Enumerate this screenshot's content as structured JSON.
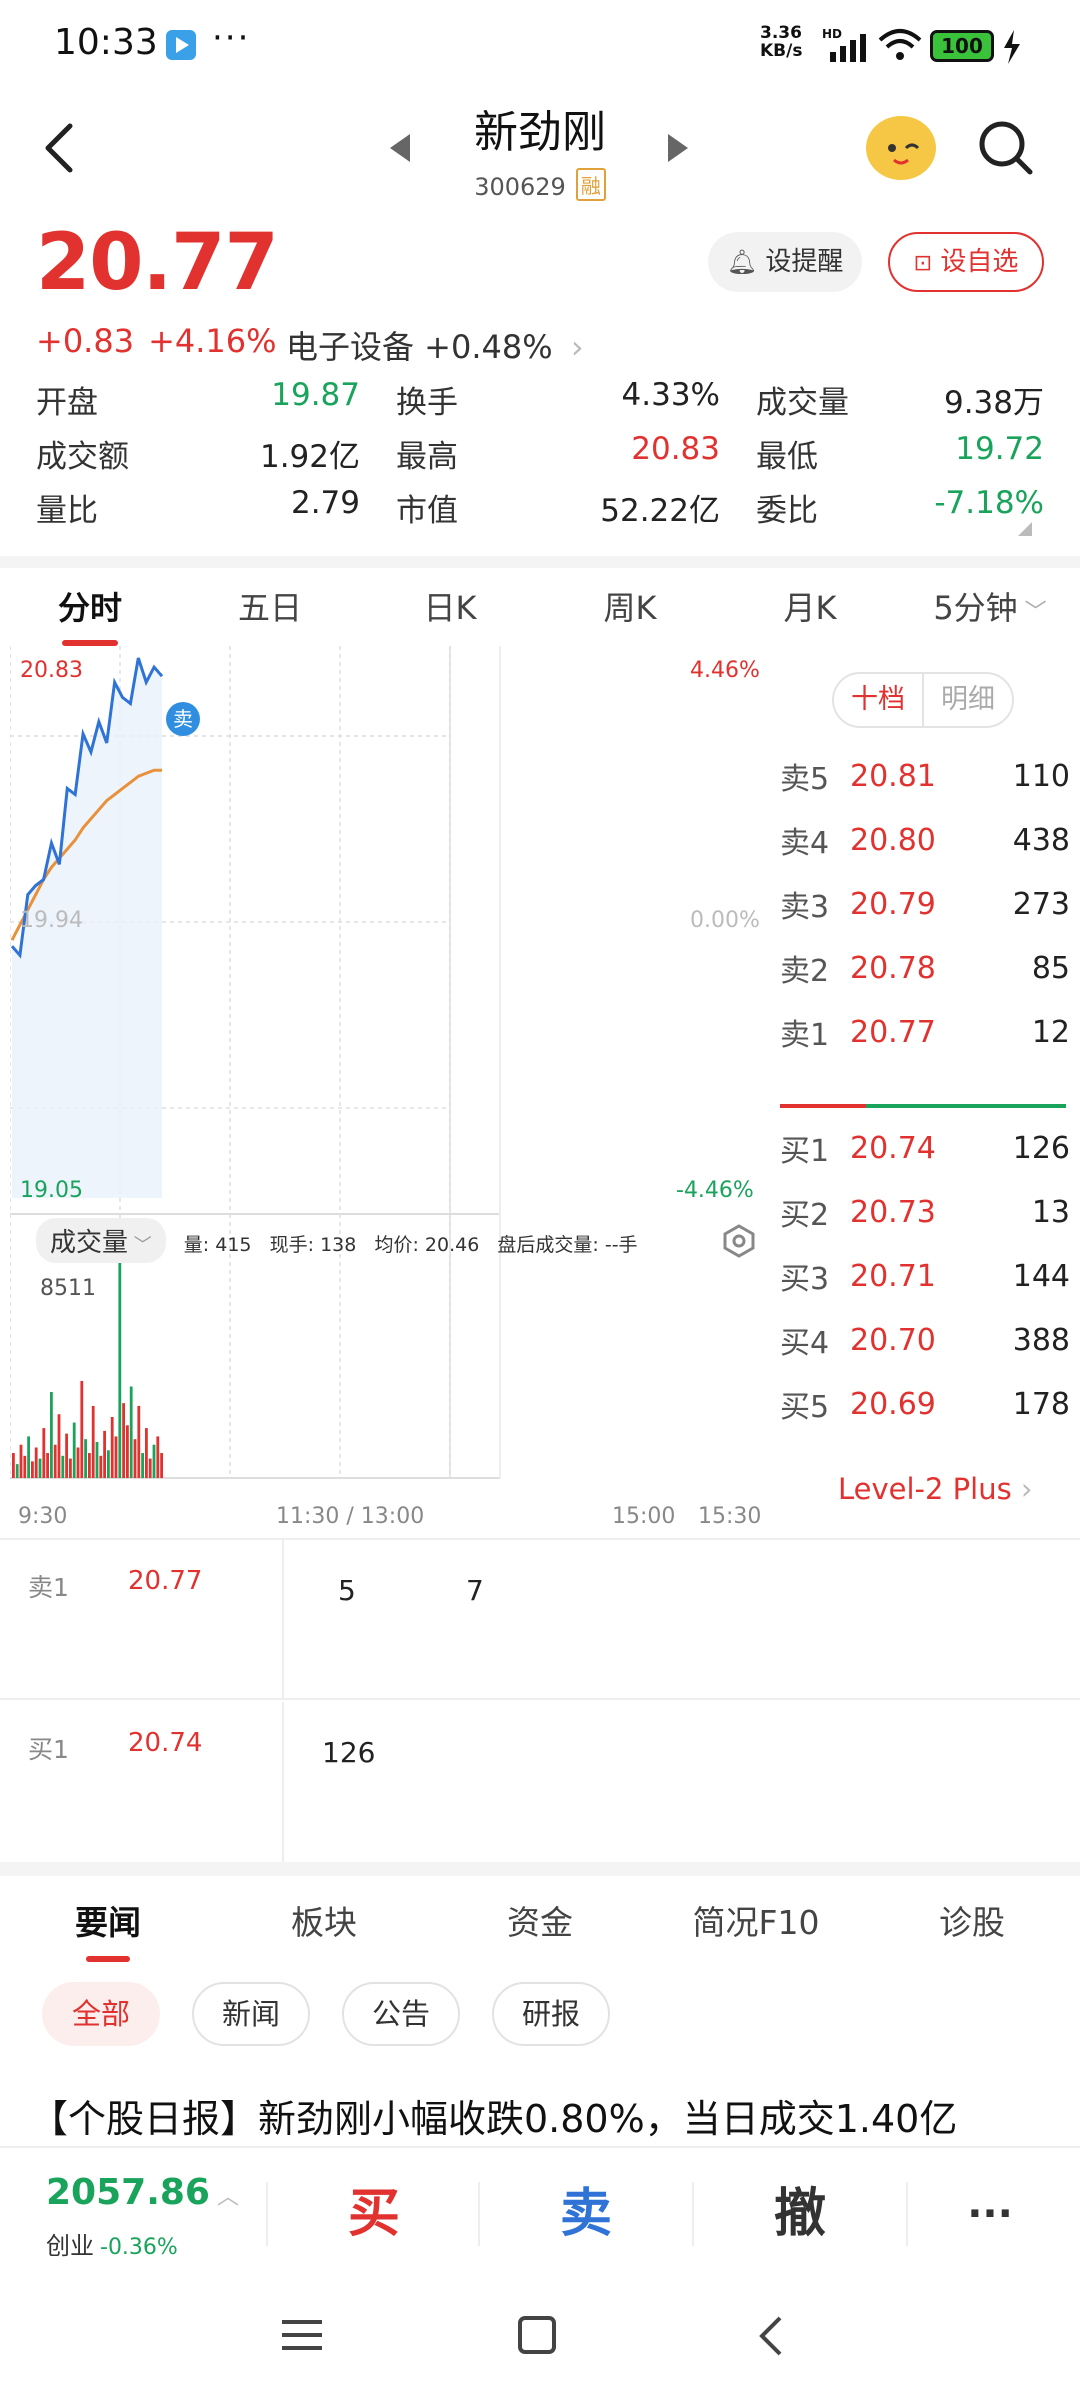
{
  "status_bar": {
    "time": "10:33",
    "dots": "···",
    "net_speed_value": "3.36",
    "net_speed_unit": "KB/s",
    "battery": "100"
  },
  "header": {
    "stock_name": "新劲刚",
    "stock_code": "300629",
    "margin_tag": "融"
  },
  "quote": {
    "price": "20.77",
    "change": "+0.83",
    "change_pct": "+4.16%",
    "sector": "电子设备 +0.48%",
    "alert_label": "设提醒",
    "fav_label": "设自选"
  },
  "stats": [
    [
      {
        "label": "开盘",
        "value": "19.87",
        "color": "green"
      },
      {
        "label": "换手",
        "value": "4.33%",
        "color": "dark"
      },
      {
        "label": "成交量",
        "value": "9.38万",
        "color": "dark"
      }
    ],
    [
      {
        "label": "成交额",
        "value": "1.92亿",
        "color": "dark"
      },
      {
        "label": "最高",
        "value": "20.83",
        "color": "red"
      },
      {
        "label": "最低",
        "value": "19.72",
        "color": "green"
      }
    ],
    [
      {
        "label": "量比",
        "value": "2.79",
        "color": "dark"
      },
      {
        "label": "市值",
        "value": "52.22亿",
        "color": "dark"
      },
      {
        "label": "委比",
        "value": "-7.18%",
        "color": "green"
      }
    ]
  ],
  "chart_tabs": [
    "分时",
    "五日",
    "日K",
    "周K",
    "月K",
    "5分钟"
  ],
  "chart": {
    "price_high": "20.83",
    "price_mid": "19.94",
    "price_low": "19.05",
    "pct_high": "4.46%",
    "pct_mid": "0.00%",
    "pct_low": "-4.46%",
    "sell_marker": "卖",
    "volume_dropdown": "成交量",
    "volume_info": "量: 415   现手: 138   均价: 20.46   盘后成交量: --手",
    "volume_max": "8511",
    "time_start": "9:30",
    "time_mid": "11:30 / 13:00",
    "time_1500": "15:00",
    "time_end": "15:30"
  },
  "chart_data": {
    "type": "line",
    "title": "",
    "xlabel": "",
    "ylabel": "",
    "ylim": [
      19.05,
      20.83
    ],
    "x_ticks": [
      "9:30",
      "11:30 / 13:00",
      "15:00",
      "15:30"
    ],
    "series": [
      {
        "name": "",
        "values": [
          19.88,
          19.85,
          20.05,
          20.08,
          20.1,
          20.22,
          20.15,
          20.4,
          20.38,
          20.58,
          20.52,
          20.62,
          20.55,
          20.75,
          20.7,
          20.68,
          20.83,
          20.75,
          20.8,
          20.77
        ]
      },
      {
        "name": "",
        "values": [
          19.9,
          19.95,
          20.0,
          20.05,
          20.1,
          20.14,
          20.17,
          20.2,
          20.23,
          20.27,
          20.3,
          20.33,
          20.36,
          20.38,
          20.4,
          20.42,
          20.44,
          20.45,
          20.46,
          20.46
        ]
      }
    ],
    "volume": {
      "ylim": [
        0,
        8511
      ],
      "values": [
        900,
        500,
        1200,
        800,
        1500,
        600,
        1100,
        700,
        1800,
        900,
        3100,
        1200,
        2300,
        800,
        1600,
        700,
        2000,
        1100,
        3500,
        1400,
        900,
        2600,
        1300,
        800,
        1700,
        1000,
        2200,
        1500,
        8511,
        2700,
        1900,
        3300,
        1400,
        2600,
        900,
        1800,
        700,
        1200,
        1500,
        900
      ]
    }
  },
  "order_book": {
    "seg_on": "十档",
    "seg_off": "明细",
    "sells": [
      {
        "label": "卖5",
        "price": "20.81",
        "vol": "110"
      },
      {
        "label": "卖4",
        "price": "20.80",
        "vol": "438"
      },
      {
        "label": "卖3",
        "price": "20.79",
        "vol": "273"
      },
      {
        "label": "卖2",
        "price": "20.78",
        "vol": "85"
      },
      {
        "label": "卖1",
        "price": "20.77",
        "vol": "12"
      }
    ],
    "buys": [
      {
        "label": "买1",
        "price": "20.74",
        "vol": "126"
      },
      {
        "label": "买2",
        "price": "20.73",
        "vol": "13"
      },
      {
        "label": "买3",
        "price": "20.71",
        "vol": "144"
      },
      {
        "label": "买4",
        "price": "20.70",
        "vol": "388"
      },
      {
        "label": "买5",
        "price": "20.69",
        "vol": "178"
      }
    ],
    "level2": "Level-2 Plus"
  },
  "queue": {
    "sell1_label": "卖1",
    "sell1_price": "20.77",
    "sell1_orders": [
      "5",
      "7"
    ],
    "buy1_label": "买1",
    "buy1_price": "20.74",
    "buy1_orders": [
      "126"
    ]
  },
  "news": {
    "tabs": [
      "要闻",
      "板块",
      "资金",
      "简况F10",
      "诊股"
    ],
    "chips": [
      "全部",
      "新闻",
      "公告",
      "研报"
    ],
    "headline": "【个股日报】新劲刚小幅收跌0.80%，当日成交1.40亿"
  },
  "trade_bar": {
    "index_value": "2057.86",
    "index_name": "创业",
    "index_change": "-0.36%",
    "buy": "买",
    "sell": "卖",
    "cancel": "撤",
    "more": "···"
  },
  "colors": {
    "red": "#e1322f",
    "green": "#1aa35b",
    "blue": "#2f73d6",
    "orange": "#e8913a"
  }
}
